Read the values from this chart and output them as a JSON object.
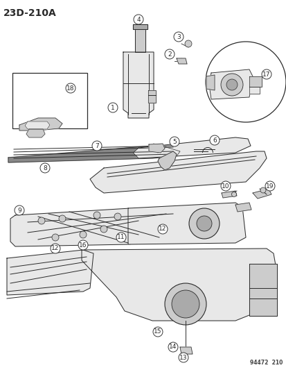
{
  "title": "23D-210A",
  "footer": "94472  210",
  "bg_color": "#ffffff",
  "fig_width": 4.14,
  "fig_height": 5.33,
  "dpi": 100,
  "title_fontsize": 10,
  "label_fontsize": 6.5,
  "line_color": "#2a2a2a",
  "fill_light": "#e8e8e8",
  "fill_mid": "#cccccc",
  "fill_dark": "#aaaaaa"
}
